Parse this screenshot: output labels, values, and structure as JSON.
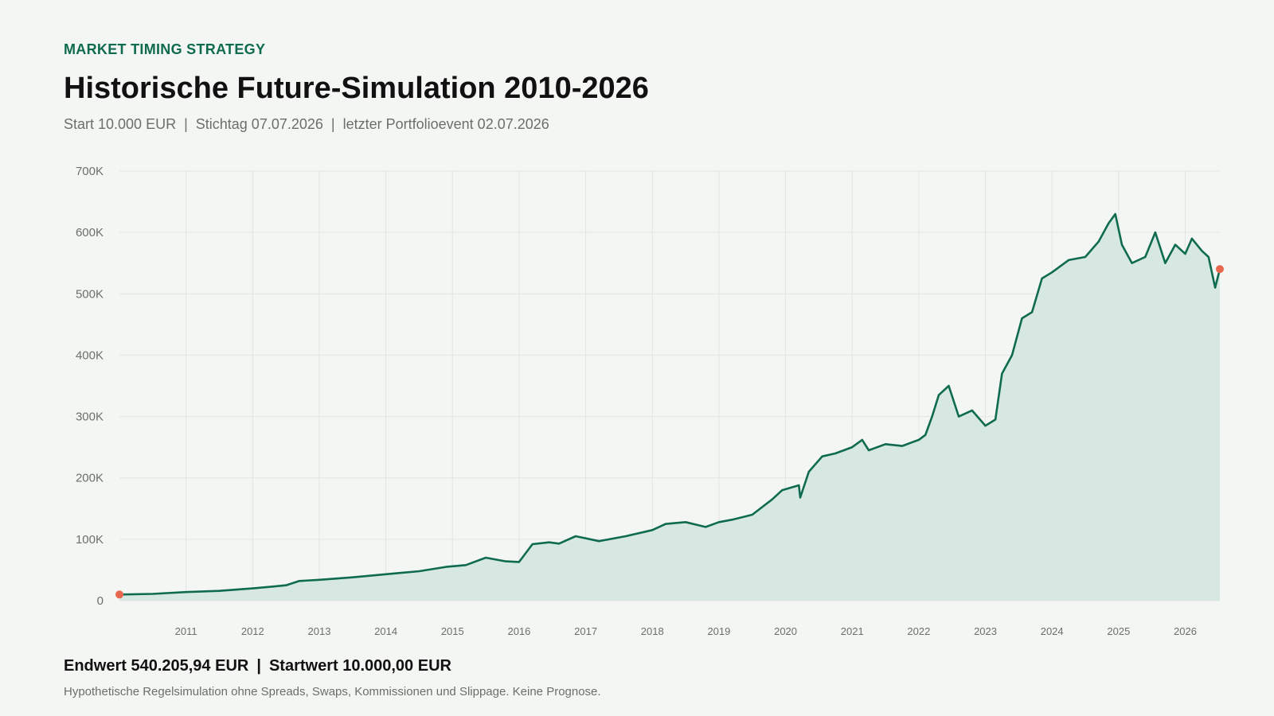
{
  "header": {
    "eyebrow": "MARKET TIMING STRATEGY",
    "title": "Historische Future-Simulation 2010-2026",
    "subtitle_start": "Start 10.000 EUR",
    "subtitle_date": "Stichtag 07.07.2026",
    "subtitle_event": "letzter Portfolioevent 02.07.2026",
    "separator": "|"
  },
  "footer": {
    "end_value": "Endwert 540.205,94 EUR",
    "start_value": "Startwert 10.000,00 EUR",
    "note": "Hypothetische Regelsimulation ohne Spreads, Swaps, Kommissionen und Slippage. Keine Prognose."
  },
  "colors": {
    "line": "#0f6b50",
    "area": "#d7e7e1",
    "marker": "#e8684f",
    "grid": "#e2e5e1",
    "axis_text": "#6b6f6c"
  },
  "chart_data": {
    "type": "area",
    "title": "Historische Future-Simulation 2010-2026",
    "xlabel": "",
    "ylabel": "",
    "xlim": [
      2010.0,
      2026.52
    ],
    "ylim": [
      0,
      700000
    ],
    "y_ticks": [
      0,
      100000,
      200000,
      300000,
      400000,
      500000,
      600000,
      700000
    ],
    "y_tick_labels": [
      "0",
      "100K",
      "200K",
      "300K",
      "400K",
      "500K",
      "600K",
      "700K"
    ],
    "x_ticks": [
      2011,
      2012,
      2013,
      2014,
      2015,
      2016,
      2017,
      2018,
      2019,
      2020,
      2021,
      2022,
      2023,
      2024,
      2025,
      2026
    ],
    "x_tick_labels": [
      "2011",
      "2012",
      "2013",
      "2014",
      "2015",
      "2016",
      "2017",
      "2018",
      "2019",
      "2020",
      "2021",
      "2022",
      "2023",
      "2024",
      "2025",
      "2026"
    ],
    "grid": true,
    "series": [
      {
        "x": [
          2010.0,
          2010.5,
          2011.0,
          2011.5,
          2012.0,
          2012.3,
          2012.5,
          2012.7,
          2013.0,
          2013.5,
          2014.0,
          2014.5,
          2014.9,
          2015.2,
          2015.5,
          2015.8,
          2016.0,
          2016.2,
          2016.45,
          2016.6,
          2016.85,
          2017.2,
          2017.6,
          2018.0,
          2018.2,
          2018.5,
          2018.8,
          2019.0,
          2019.2,
          2019.5,
          2019.8,
          2019.95,
          2020.2,
          2020.22,
          2020.35,
          2020.55,
          2020.75,
          2021.0,
          2021.15,
          2021.25,
          2021.5,
          2021.75,
          2022.0,
          2022.1,
          2022.2,
          2022.3,
          2022.45,
          2022.6,
          2022.8,
          2023.0,
          2023.15,
          2023.25,
          2023.4,
          2023.55,
          2023.7,
          2023.85,
          2024.0,
          2024.25,
          2024.5,
          2024.7,
          2024.85,
          2024.95,
          2025.05,
          2025.2,
          2025.4,
          2025.55,
          2025.7,
          2025.85,
          2026.0,
          2026.1,
          2026.25,
          2026.35,
          2026.45,
          2026.52
        ],
        "y": [
          10000,
          11000,
          14000,
          16000,
          20000,
          23000,
          25000,
          32000,
          34000,
          38000,
          43000,
          48000,
          55000,
          58000,
          70000,
          64000,
          63000,
          92000,
          95000,
          93000,
          105000,
          97000,
          105000,
          115000,
          125000,
          128000,
          120000,
          128000,
          132000,
          140000,
          165000,
          180000,
          188000,
          168000,
          210000,
          235000,
          240000,
          250000,
          262000,
          245000,
          255000,
          252000,
          262000,
          270000,
          300000,
          335000,
          350000,
          300000,
          310000,
          285000,
          295000,
          370000,
          400000,
          460000,
          470000,
          525000,
          535000,
          555000,
          560000,
          585000,
          615000,
          630000,
          580000,
          550000,
          560000,
          600000,
          550000,
          580000,
          565000,
          590000,
          570000,
          560000,
          510000,
          540206
        ]
      }
    ],
    "markers": [
      {
        "x": 2010.0,
        "y": 10000
      },
      {
        "x": 2026.52,
        "y": 540206
      }
    ]
  }
}
